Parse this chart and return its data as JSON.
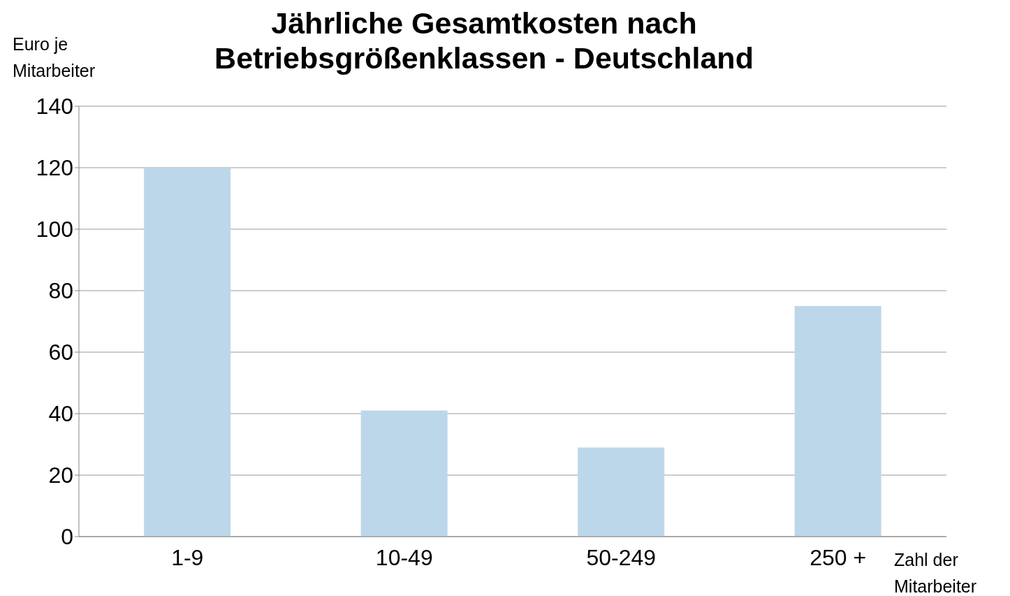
{
  "chart_data": {
    "type": "bar",
    "title": "Jährliche Gesamtkosten nach Betriebsgrößenklassen - Deutschland",
    "ylabel": "Euro je Mitarbeiter",
    "xlabel": "Zahl der Mitarbeiter",
    "categories": [
      "1-9",
      "10-49",
      "50-249",
      "250 +"
    ],
    "values": [
      120,
      41,
      29,
      75
    ],
    "color": "#bdd7ea",
    "ylim": [
      0,
      140
    ],
    "yticks": [
      0,
      20,
      40,
      60,
      80,
      100,
      120,
      140
    ],
    "grid": "y"
  }
}
